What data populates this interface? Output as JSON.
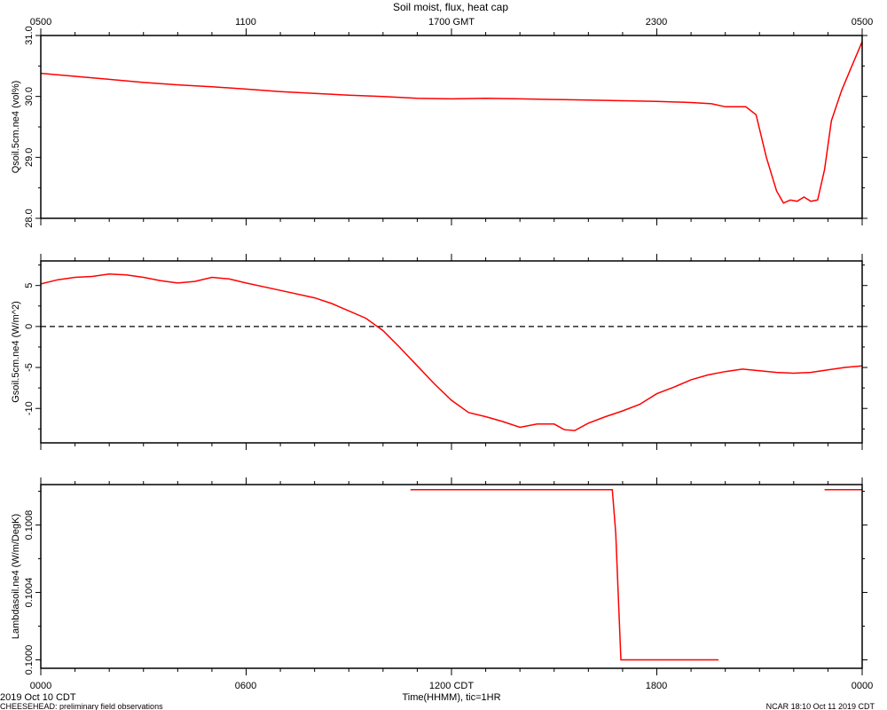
{
  "chart_data": {
    "type": "line",
    "title": "Soil moist, flux, heat cap",
    "top_axis": {
      "ticks": [
        "0500",
        "1100",
        "1700 GMT",
        "2300",
        "0500"
      ]
    },
    "bottom_axis": {
      "ticks": [
        "0000",
        "0600",
        "1200 CDT",
        "1800",
        "0000"
      ],
      "xlabel": "Time(HHMM), tic=1HR",
      "xlim": [
        0,
        24
      ]
    },
    "footer": {
      "left_date": "2019 Oct 10 CDT",
      "left_caption": "CHEESEHEAD: preliminary field observations",
      "right": "NCAR 18:10 Oct 11 2019 CDT"
    },
    "panels": [
      {
        "ylabel": "Qsoil.5cm.ne4 (vol%)",
        "ylim": [
          28.0,
          31.0
        ],
        "yticks": [
          28.0,
          29.0,
          30.0,
          31.0
        ],
        "ytick_labels": [
          "28.0",
          "29.0",
          "30.0",
          "31.0"
        ],
        "zero_line": false,
        "segments": [
          [
            [
              0,
              30.38
            ],
            [
              1,
              30.33
            ],
            [
              2,
              30.28
            ],
            [
              3,
              30.23
            ],
            [
              4,
              30.19
            ],
            [
              5,
              30.16
            ],
            [
              6,
              30.12
            ],
            [
              7,
              30.08
            ],
            [
              8,
              30.05
            ],
            [
              9,
              30.02
            ],
            [
              10,
              30.0
            ],
            [
              11,
              29.97
            ],
            [
              12,
              29.96
            ],
            [
              13,
              29.97
            ],
            [
              14,
              29.96
            ],
            [
              15,
              29.95
            ],
            [
              16,
              29.94
            ],
            [
              17,
              29.93
            ],
            [
              18,
              29.92
            ],
            [
              19,
              29.9
            ],
            [
              19.6,
              29.88
            ],
            [
              20.0,
              29.83
            ],
            [
              20.4,
              29.83
            ],
            [
              20.6,
              29.83
            ],
            [
              20.9,
              29.7
            ],
            [
              21.2,
              29.0
            ],
            [
              21.5,
              28.45
            ],
            [
              21.7,
              28.25
            ],
            [
              21.9,
              28.3
            ],
            [
              22.1,
              28.28
            ],
            [
              22.3,
              28.35
            ],
            [
              22.5,
              28.28
            ],
            [
              22.7,
              28.3
            ],
            [
              22.9,
              28.8
            ],
            [
              23.1,
              29.6
            ],
            [
              23.4,
              30.1
            ],
            [
              23.7,
              30.5
            ],
            [
              24.0,
              30.9
            ]
          ]
        ]
      },
      {
        "ylabel": "Gsoil.5cm.ne4 (W/m^2)",
        "ylim": [
          -14.2,
          8.0
        ],
        "yticks": [
          -10,
          -5,
          0,
          5
        ],
        "ytick_labels": [
          "-10",
          "-5",
          "0",
          "5"
        ],
        "zero_line": true,
        "segments": [
          [
            [
              0,
              5.2
            ],
            [
              0.5,
              5.7
            ],
            [
              1,
              6.0
            ],
            [
              1.5,
              6.1
            ],
            [
              2,
              6.4
            ],
            [
              2.5,
              6.3
            ],
            [
              3,
              6.0
            ],
            [
              3.5,
              5.6
            ],
            [
              4,
              5.3
            ],
            [
              4.5,
              5.5
            ],
            [
              5,
              6.0
            ],
            [
              5.5,
              5.8
            ],
            [
              6,
              5.3
            ],
            [
              7,
              4.4
            ],
            [
              8,
              3.5
            ],
            [
              8.5,
              2.8
            ],
            [
              9,
              1.9
            ],
            [
              9.5,
              1.0
            ],
            [
              10,
              -0.5
            ],
            [
              10.5,
              -2.6
            ],
            [
              11,
              -4.8
            ],
            [
              11.5,
              -7.0
            ],
            [
              12,
              -9.0
            ],
            [
              12.5,
              -10.5
            ],
            [
              13,
              -11.0
            ],
            [
              13.5,
              -11.6
            ],
            [
              14,
              -12.3
            ],
            [
              14.5,
              -11.9
            ],
            [
              15,
              -11.9
            ],
            [
              15.3,
              -12.6
            ],
            [
              15.6,
              -12.7
            ],
            [
              16,
              -11.8
            ],
            [
              16.5,
              -11.0
            ],
            [
              17,
              -10.3
            ],
            [
              17.5,
              -9.5
            ],
            [
              18,
              -8.2
            ],
            [
              18.5,
              -7.4
            ],
            [
              19,
              -6.5
            ],
            [
              19.5,
              -5.9
            ],
            [
              20,
              -5.5
            ],
            [
              20.5,
              -5.2
            ],
            [
              21,
              -5.4
            ],
            [
              21.5,
              -5.6
            ],
            [
              22,
              -5.7
            ],
            [
              22.5,
              -5.6
            ],
            [
              23,
              -5.3
            ],
            [
              23.5,
              -5.0
            ],
            [
              24,
              -4.8
            ]
          ]
        ]
      },
      {
        "ylabel": "Lambdasoil.ne4 (W/m/DegK)",
        "ylim": [
          0.09995,
          0.10104
        ],
        "yticks": [
          0.1,
          0.1004,
          0.1008
        ],
        "ytick_labels": [
          "0.1000",
          "0.1004",
          "0.1008"
        ],
        "zero_line": false,
        "segments": [
          [
            [
              10.8,
              0.10101
            ],
            [
              16.7,
              0.10101
            ],
            [
              16.8,
              0.10075
            ],
            [
              16.95,
              0.1
            ],
            [
              19.8,
              0.1
            ]
          ],
          [
            [
              22.9,
              0.10101
            ],
            [
              24,
              0.10101
            ]
          ]
        ]
      }
    ]
  }
}
